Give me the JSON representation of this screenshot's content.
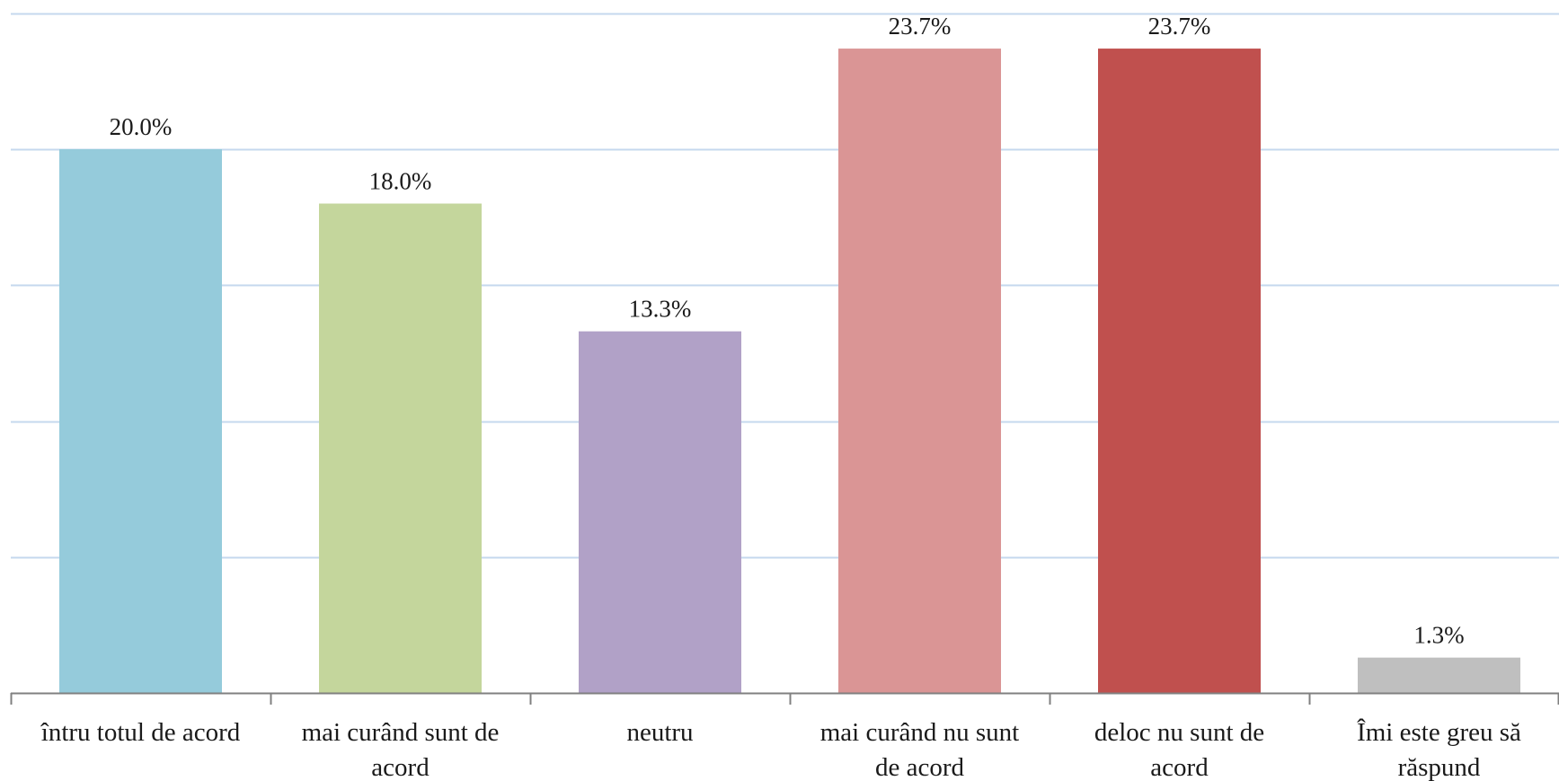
{
  "chart_data": {
    "type": "bar",
    "categories": [
      [
        "întru totul de acord"
      ],
      [
        "mai curând sunt de",
        "acord"
      ],
      [
        "neutru"
      ],
      [
        "mai curând nu sunt",
        "de acord"
      ],
      [
        "deloc nu sunt de",
        "acord"
      ],
      [
        "Îmi este greu să",
        "răspund"
      ]
    ],
    "values": [
      20.0,
      18.0,
      13.3,
      23.7,
      23.7,
      1.3
    ],
    "value_labels": [
      "20.0%",
      "18.0%",
      "13.3%",
      "23.7%",
      "23.7%",
      "1.3%"
    ],
    "colors": [
      "#95cbdb",
      "#c4d69c",
      "#b1a1c7",
      "#da9595",
      "#c0504e",
      "#bfbfbf"
    ],
    "ylim": [
      0,
      25
    ],
    "grid": true,
    "gridline_color": "#c5d8ee",
    "axis_color": "#808080",
    "title": "",
    "xlabel": "",
    "ylabel": ""
  }
}
